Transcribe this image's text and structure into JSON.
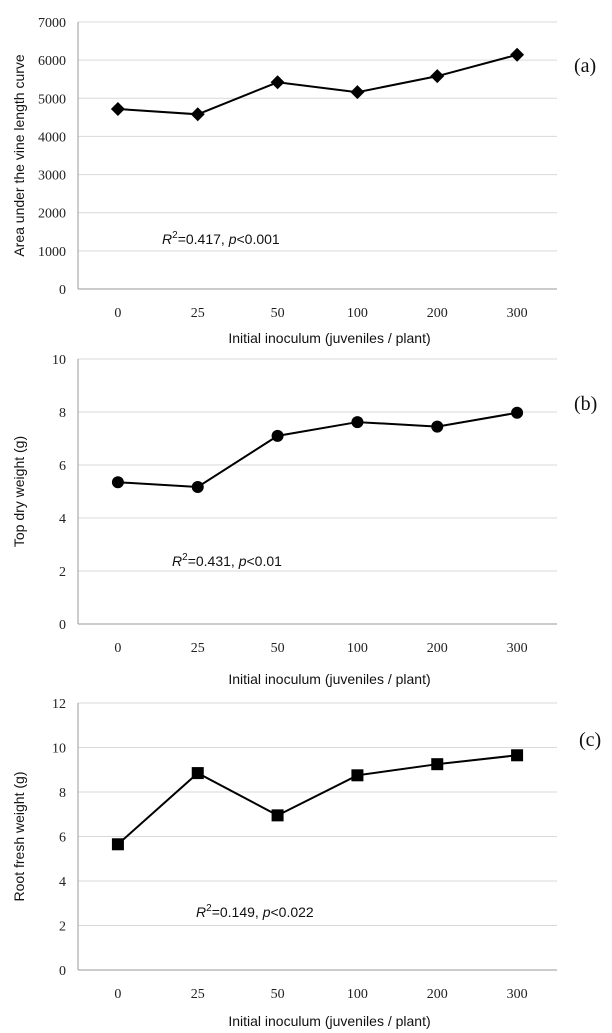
{
  "chart_data": [
    {
      "type": "line",
      "panel_label": "(a)",
      "ylabel": "Area under the vine length curve",
      "xlabel": "Initial inoculum (juveniles / plant)",
      "categories": [
        "0",
        "25",
        "50",
        "100",
        "200",
        "300"
      ],
      "ylim": [
        0,
        7000
      ],
      "yticks": [
        "0",
        "1000",
        "2000",
        "3000",
        "4000",
        "5000",
        "6000",
        "7000"
      ],
      "marker": "diamond",
      "series": [
        {
          "values": [
            4720,
            4580,
            5420,
            5160,
            5580,
            6140
          ]
        }
      ],
      "annotation": {
        "r2_symbol": "R",
        "r2_sup": "2",
        "r2_value": "=0.417, ",
        "p_symbol": "p",
        "p_value": "<0.001"
      },
      "grid": "horizontal"
    },
    {
      "type": "line",
      "panel_label": "(b)",
      "ylabel": "Top dry weight (g)",
      "xlabel": "Initial inoculum (juveniles / plant)",
      "categories": [
        "0",
        "25",
        "50",
        "100",
        "200",
        "300"
      ],
      "ylim": [
        0,
        10
      ],
      "yticks": [
        "0",
        "2",
        "4",
        "6",
        "8",
        "10"
      ],
      "marker": "circle",
      "series": [
        {
          "values": [
            5.35,
            5.17,
            7.1,
            7.62,
            7.45,
            7.97
          ]
        }
      ],
      "annotation": {
        "r2_symbol": "R",
        "r2_sup": "2",
        "r2_value": "=0.431, ",
        "p_symbol": "p",
        "p_value": "<0.01"
      },
      "grid": "horizontal"
    },
    {
      "type": "line",
      "panel_label": "(c)",
      "ylabel": "Root fresh weight (g)",
      "xlabel": "Initial inoculum (juveniles / plant)",
      "categories": [
        "0",
        "25",
        "50",
        "100",
        "200",
        "300"
      ],
      "ylim": [
        0,
        12
      ],
      "yticks": [
        "0",
        "2",
        "4",
        "6",
        "8",
        "10",
        "12"
      ],
      "marker": "square",
      "series": [
        {
          "values": [
            5.65,
            8.85,
            6.95,
            8.75,
            9.25,
            9.65
          ]
        }
      ],
      "annotation": {
        "r2_symbol": "R",
        "r2_sup": "2",
        "r2_value": "=0.149, ",
        "p_symbol": "p",
        "p_value": "<0.022"
      },
      "grid": "horizontal"
    }
  ],
  "colors": {
    "series": "#000000",
    "grid": "#d9d9d9",
    "axis": "#9a9a9a"
  }
}
